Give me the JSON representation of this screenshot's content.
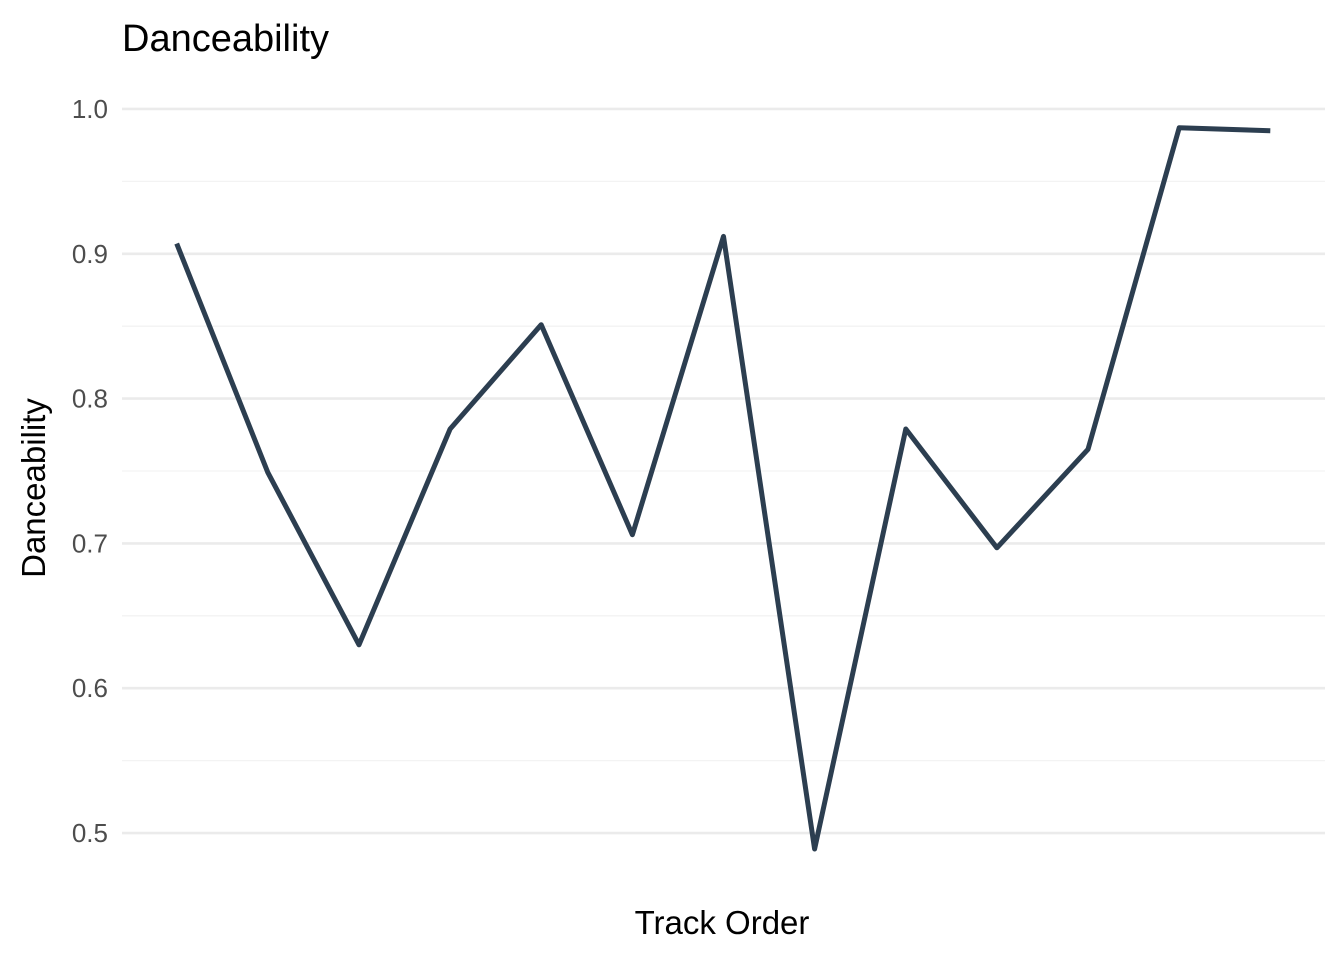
{
  "chart_data": {
    "type": "line",
    "title": "Danceability",
    "xlabel": "Track Order",
    "ylabel": "Danceability",
    "x": [
      1,
      2,
      3,
      4,
      5,
      6,
      7,
      8,
      9,
      10,
      11,
      12,
      13
    ],
    "series": [
      {
        "values": [
          0.907,
          0.749,
          0.63,
          0.779,
          0.851,
          0.706,
          0.912,
          0.489,
          0.779,
          0.697,
          0.765,
          0.987,
          0.985
        ],
        "color": "#2c3e50"
      }
    ],
    "ylim": [
      0.48,
      1.02
    ],
    "yticks": [
      0.5,
      0.6,
      0.7,
      0.8,
      0.9,
      1.0
    ],
    "ytick_labels": [
      "0.5",
      "0.6",
      "0.7",
      "0.8",
      "0.9",
      "1.0"
    ],
    "x_tick_labels_shown": false,
    "grid": true,
    "legend": "none"
  }
}
